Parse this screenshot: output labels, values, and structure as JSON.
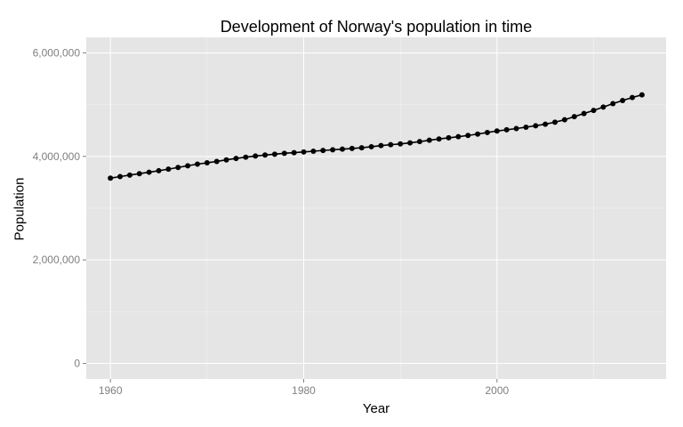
{
  "chart_data": {
    "type": "line",
    "title": "Development of Norway's population in time",
    "xlabel": "Year",
    "ylabel": "Population",
    "xlim": [
      1957.5,
      2017.5
    ],
    "ylim": [
      -300000,
      6300000
    ],
    "x_ticks": [
      1960,
      1980,
      2000
    ],
    "x_tick_labels": [
      "1960",
      "1980",
      "2000"
    ],
    "y_ticks": [
      0,
      2000000,
      4000000,
      6000000
    ],
    "y_tick_labels": [
      "0",
      "2,000,000",
      "4,000,000",
      "6,000,000"
    ],
    "grid": true,
    "legend": "none",
    "colors": {
      "panel": "#e5e5e5",
      "grid": "#ffffff",
      "series": "#000000"
    },
    "series": [
      {
        "x": [
          1960,
          1961,
          1962,
          1963,
          1964,
          1965,
          1966,
          1967,
          1968,
          1969,
          1970,
          1971,
          1972,
          1973,
          1974,
          1975,
          1976,
          1977,
          1978,
          1979,
          1980,
          1981,
          1982,
          1983,
          1984,
          1985,
          1986,
          1987,
          1988,
          1989,
          1990,
          1991,
          1992,
          1993,
          1994,
          1995,
          1996,
          1997,
          1998,
          1999,
          2000,
          2001,
          2002,
          2003,
          2004,
          2005,
          2006,
          2007,
          2008,
          2009,
          2010,
          2011,
          2012,
          2013,
          2014,
          2015
        ],
        "values": [
          3581000,
          3610000,
          3639000,
          3667000,
          3695000,
          3723000,
          3754000,
          3786000,
          3819000,
          3851000,
          3876000,
          3903000,
          3933000,
          3961000,
          3985000,
          4007000,
          4026000,
          4043000,
          4060000,
          4073000,
          4086000,
          4100000,
          4115000,
          4128000,
          4140000,
          4153000,
          4167000,
          4187000,
          4209000,
          4227000,
          4241000,
          4262000,
          4286000,
          4312000,
          4337000,
          4359000,
          4381000,
          4405000,
          4431000,
          4462000,
          4491000,
          4514000,
          4538000,
          4565000,
          4592000,
          4623000,
          4661000,
          4709000,
          4768000,
          4829000,
          4889000,
          4953000,
          5019000,
          5080000,
          5137000,
          5190000
        ]
      }
    ]
  }
}
